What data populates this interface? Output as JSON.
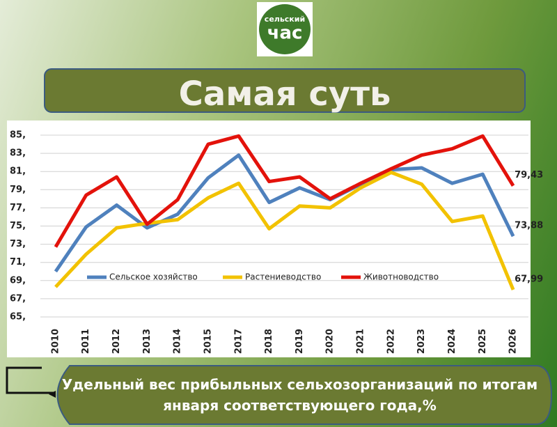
{
  "logo": {
    "top": "сельский",
    "bottom": "час"
  },
  "header": {
    "title": "Самая суть"
  },
  "caption": {
    "text": "Удельный вес прибыльных сельхозорганизаций по итогам января соответствующего года,%"
  },
  "chart_data": {
    "type": "line",
    "categories": [
      "2010",
      "2011",
      "2012",
      "2013",
      "2014",
      "2015",
      "2017",
      "2018",
      "2019",
      "2020",
      "2021",
      "2022",
      "2023",
      "2024",
      "2025",
      "2026"
    ],
    "series": [
      {
        "name": "Сельское хозяйство",
        "color": "#4f81bd",
        "values": [
          70.0,
          74.9,
          77.3,
          74.8,
          76.3,
          80.3,
          82.8,
          77.6,
          79.2,
          77.9,
          79.6,
          81.2,
          81.4,
          79.7,
          80.7,
          73.88
        ],
        "value_labels": [
          null,
          null,
          null,
          null,
          null,
          null,
          null,
          null,
          null,
          null,
          null,
          null,
          null,
          null,
          null,
          "73,88"
        ]
      },
      {
        "name": "Растениеводство",
        "color": "#f2c200",
        "values": [
          68.3,
          71.9,
          74.8,
          75.3,
          75.7,
          78.1,
          79.7,
          74.7,
          77.2,
          77.0,
          79.2,
          80.9,
          79.6,
          75.5,
          76.1,
          67.99
        ],
        "value_labels": [
          null,
          null,
          null,
          null,
          null,
          null,
          null,
          null,
          null,
          null,
          null,
          null,
          null,
          null,
          null,
          "67,99"
        ]
      },
      {
        "name": "Животноводство",
        "color": "#e3120b",
        "values": [
          72.7,
          78.4,
          80.4,
          75.2,
          77.9,
          84.0,
          84.9,
          79.9,
          80.4,
          78.0,
          79.7,
          81.3,
          82.8,
          83.5,
          84.9,
          79.43
        ],
        "value_labels": [
          null,
          null,
          null,
          null,
          null,
          null,
          null,
          null,
          null,
          null,
          null,
          null,
          null,
          null,
          null,
          "79,43"
        ]
      }
    ],
    "ylim": [
      65,
      85
    ],
    "yticks": [
      {
        "value": 65,
        "label": "65,"
      },
      {
        "value": 67,
        "label": "67,"
      },
      {
        "value": 69,
        "label": "69,"
      },
      {
        "value": 71,
        "label": "71,"
      },
      {
        "value": 73,
        "label": "73,"
      },
      {
        "value": 75,
        "label": "75,"
      },
      {
        "value": 77,
        "label": "77,"
      },
      {
        "value": 79,
        "label": "79,"
      },
      {
        "value": 81,
        "label": "81,"
      },
      {
        "value": 83,
        "label": "83,"
      },
      {
        "value": 85,
        "label": "85,"
      }
    ],
    "grid": true
  }
}
